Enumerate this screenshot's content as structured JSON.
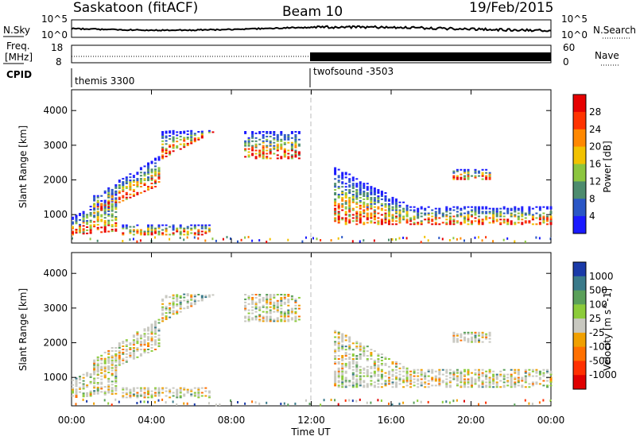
{
  "header": {
    "station": "Saskatoon (fitACF)",
    "beam": "Beam 10",
    "date": "19/Feb/2015"
  },
  "panels": {
    "nsky": {
      "left_label": "N.Sky",
      "right_label": "N.Search",
      "left_ticks": [
        "10^5",
        "10^0"
      ],
      "right_ticks": [
        "10^5",
        "10^0"
      ]
    },
    "freq": {
      "left_label_1": "Freq.",
      "left_label_2": "[MHz]",
      "right_label": "Nave",
      "left_ticks": [
        "18",
        "8"
      ],
      "right_ticks": [
        "60",
        "0"
      ]
    },
    "cpid": {
      "label": "CPID",
      "modes": [
        "themis 3300",
        "twofsound -3503"
      ]
    }
  },
  "chart_data": [
    {
      "type": "heatmap",
      "name": "power",
      "ylabel": "Slant Range [km]",
      "xlabel": "Time UT",
      "ylim": [
        180,
        4600
      ],
      "yticks": [
        1000,
        2000,
        3000,
        4000
      ],
      "x_ticks": [
        "00:00",
        "04:00",
        "08:00",
        "12:00",
        "16:00",
        "20:00",
        "00:00"
      ],
      "colorbar_label": "Power [dB]",
      "colorbar_ticks": [
        "4",
        "8",
        "12",
        "16",
        "20",
        "24",
        "28"
      ],
      "colors": [
        "#1a1aff",
        "#2a56c6",
        "#4d8c6e",
        "#8cc63f",
        "#f2c200",
        "#ff8800",
        "#ff3300",
        "#e60000"
      ]
    },
    {
      "type": "heatmap",
      "name": "velocity",
      "ylabel": "Slant Range [km]",
      "xlabel": "Time UT",
      "ylim": [
        180,
        4600
      ],
      "yticks": [
        1000,
        2000,
        3000,
        4000
      ],
      "x_ticks": [
        "00:00",
        "04:00",
        "08:00",
        "12:00",
        "16:00",
        "20:00",
        "00:00"
      ],
      "colorbar_label": "Velocity [m s^-1]",
      "colorbar_ticks": [
        "1000",
        "500",
        "100",
        "25",
        "-25",
        "-100",
        "-500",
        "-1000"
      ],
      "colors": [
        "#1a3aa8",
        "#3a7a8a",
        "#5aa05a",
        "#8ccc3a",
        "#c8c8c0",
        "#f0a000",
        "#ff7000",
        "#ff3000",
        "#e00000"
      ]
    }
  ],
  "x_axis_title": "Time UT"
}
